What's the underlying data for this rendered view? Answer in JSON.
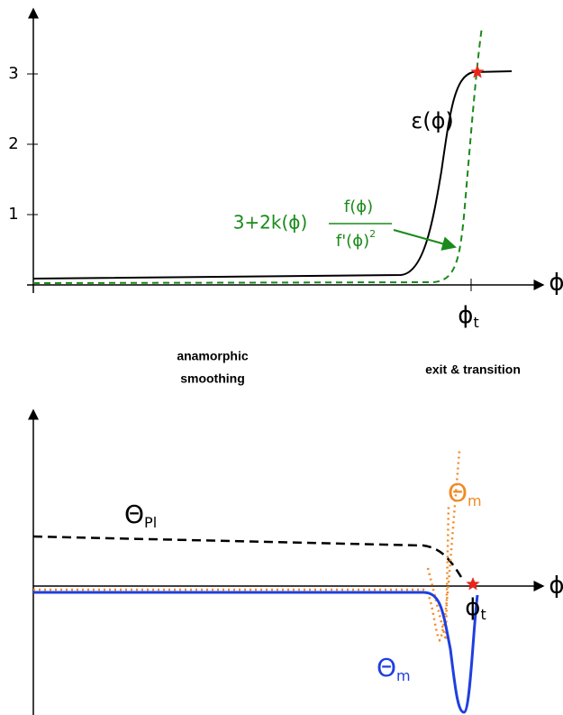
{
  "top": {
    "y_ticks": [
      "1",
      "2",
      "3"
    ],
    "x_axis_label": "ϕ",
    "transition_label": {
      "symbol": "ϕ",
      "subscript": "t"
    },
    "epsilon_label": "ε(ϕ)",
    "formula": {
      "lead": "3+2k(ϕ)",
      "numerator": "f(ϕ)",
      "denominator": "f'(ϕ)",
      "denominator_power": "2"
    }
  },
  "regions": {
    "smoothing": [
      "anamorphic",
      "smoothing"
    ],
    "exit": "exit & transition"
  },
  "bottom": {
    "x_axis_label": "ϕ",
    "transition_label": {
      "symbol": "ϕ",
      "subscript": "t"
    },
    "theta_pl": {
      "symbol": "Θ",
      "subscript": "Pl"
    },
    "theta_m_orange": {
      "symbol": "Θ",
      "subscript": "m"
    },
    "theta_m_blue": {
      "symbol": "Θ",
      "subscript": "m"
    }
  }
}
